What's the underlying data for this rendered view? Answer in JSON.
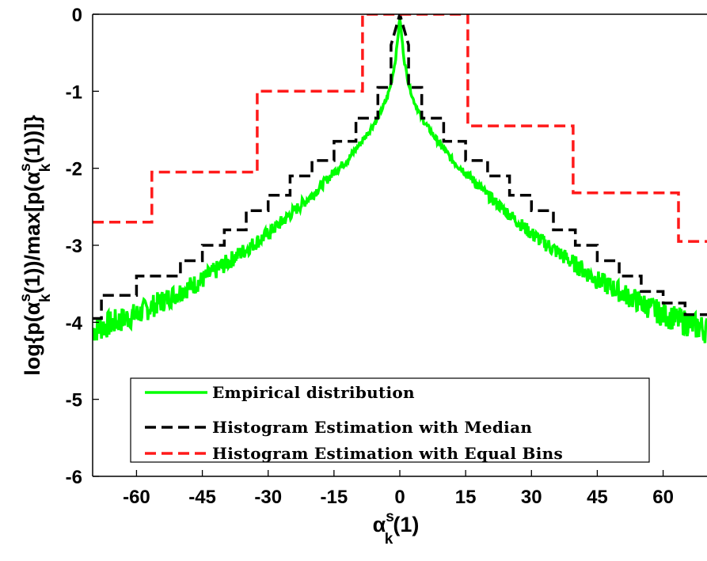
{
  "chart_data": {
    "type": "line",
    "xlabel": {
      "base": "α",
      "sub": "k",
      "sup": "s",
      "tail": "(1)"
    },
    "ylabel": {
      "pre": "log{p(",
      "base": "α",
      "sub": "k",
      "sup": "s",
      "mid": "(1))/max[p(",
      "base2": "α",
      "sub2": "k",
      "sup2": "s",
      "tail": "(1))]}"
    },
    "xlim": [
      -70,
      70
    ],
    "ylim": [
      -6,
      0
    ],
    "xticks": [
      -60,
      -45,
      -30,
      -15,
      0,
      15,
      30,
      45,
      60
    ],
    "yticks": [
      0,
      -1,
      -2,
      -3,
      -4,
      -5,
      -6
    ],
    "grid": false,
    "legend_position": "bottom-center",
    "series": [
      {
        "name": "Empirical distribution",
        "color": "#00ff00",
        "style": "solid",
        "empirical_curve": {
          "x": [
            0,
            1,
            2,
            3,
            5,
            8,
            12,
            15,
            20,
            25,
            30,
            35,
            40,
            45,
            50,
            55,
            60,
            65,
            70
          ],
          "y": [
            -0.05,
            -0.6,
            -0.9,
            -1.1,
            -1.35,
            -1.6,
            -1.9,
            -2.05,
            -2.35,
            -2.6,
            -2.85,
            -3.05,
            -3.25,
            -3.45,
            -3.6,
            -3.75,
            -3.9,
            -4.0,
            -4.1
          ]
        }
      },
      {
        "name": "Histogram Estimation with Median",
        "color": "#000000",
        "style": "dashed",
        "x": [
          -70,
          -68,
          -68,
          -60,
          -60,
          -50,
          -50,
          -45,
          -45,
          -40,
          -40,
          -35,
          -35,
          -30,
          -30,
          -25,
          -25,
          -20,
          -20,
          -15,
          -15,
          -10,
          -10,
          -5,
          -5,
          -2,
          -2,
          0,
          2,
          2,
          5,
          5,
          10,
          10,
          15,
          15,
          20,
          20,
          25,
          25,
          30,
          30,
          35,
          35,
          40,
          40,
          45,
          45,
          50,
          50,
          55,
          55,
          60,
          60,
          65,
          65,
          70
        ],
        "y": [
          -3.95,
          -3.95,
          -3.65,
          -3.65,
          -3.4,
          -3.4,
          -3.2,
          -3.2,
          -3.0,
          -3.0,
          -2.8,
          -2.8,
          -2.55,
          -2.55,
          -2.35,
          -2.35,
          -2.1,
          -2.1,
          -1.9,
          -1.9,
          -1.65,
          -1.65,
          -1.35,
          -1.35,
          -0.95,
          -0.95,
          -0.4,
          0.0,
          -0.4,
          -0.95,
          -0.95,
          -1.35,
          -1.35,
          -1.65,
          -1.65,
          -1.9,
          -1.9,
          -2.1,
          -2.1,
          -2.35,
          -2.35,
          -2.55,
          -2.55,
          -2.8,
          -2.8,
          -3.0,
          -3.0,
          -3.2,
          -3.2,
          -3.4,
          -3.4,
          -3.6,
          -3.6,
          -3.75,
          -3.75,
          -3.9,
          -3.9
        ]
      },
      {
        "name": "Histogram Estimation with Equal Bins",
        "color": "#ff1a1a",
        "style": "dashed",
        "x": [
          -70,
          -56.5,
          -56.5,
          -32.5,
          -32.5,
          -8.5,
          -8.5,
          15.5,
          15.5,
          39.5,
          39.5,
          63.5,
          63.5,
          70
        ],
        "y": [
          -2.7,
          -2.7,
          -2.05,
          -2.05,
          -1.0,
          -1.0,
          0.0,
          0.0,
          -1.45,
          -1.45,
          -2.32,
          -2.32,
          -2.95,
          -2.95
        ]
      }
    ]
  }
}
